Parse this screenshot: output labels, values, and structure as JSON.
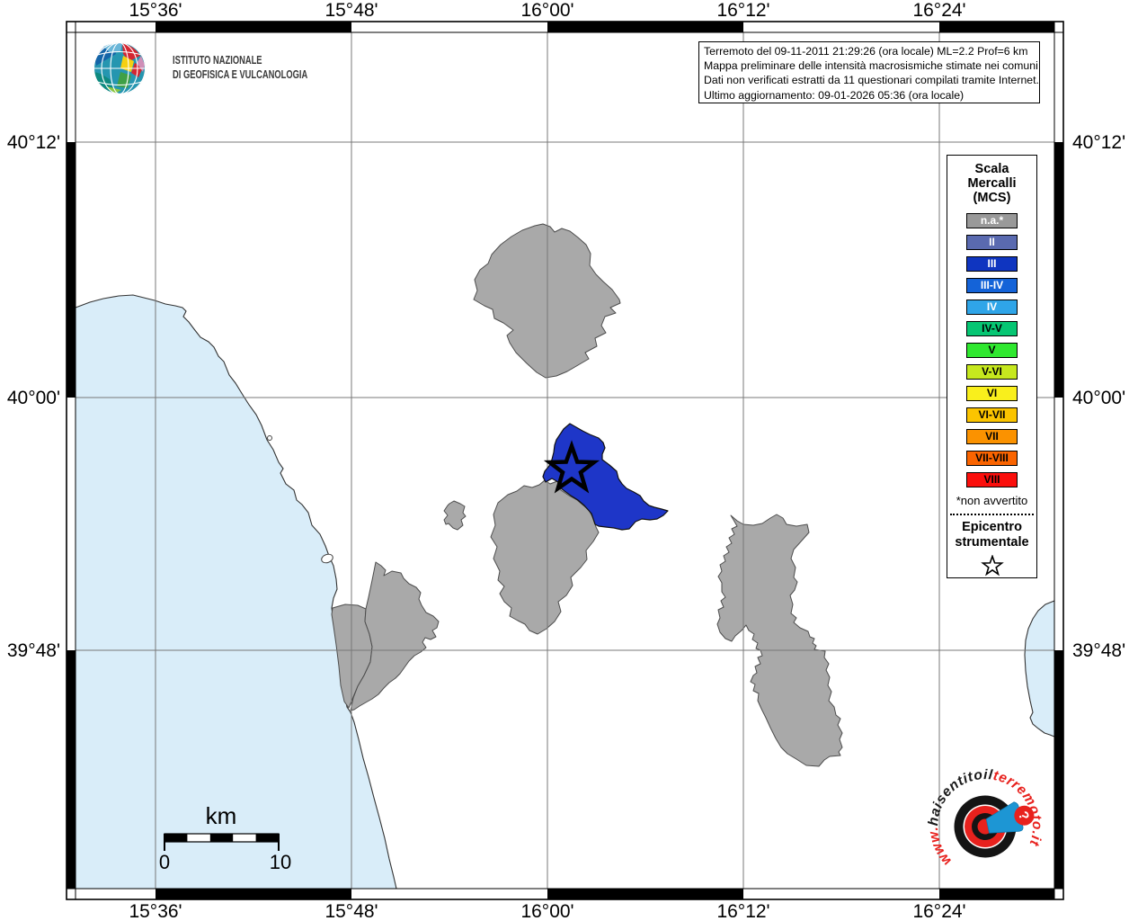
{
  "colors": {
    "sea": "#d9edf9",
    "land": "#ffffff",
    "municipality_na": "#a9a9a9",
    "municipality_border": "#4d4d4d",
    "felt_iii": "#1e36c8",
    "grid": "#787878",
    "frame": "#000000",
    "logo_red": "#e8211d",
    "logo_blue": "#1d96d4"
  },
  "info_box": {
    "line1": "Terremoto del 09-11-2011 21:29:26 (ora locale) ML=2.2 Prof=6 km",
    "line2": "Mappa preliminare delle intensità macrosismiche stimate nei comuni",
    "line3": "Dati non verificati estratti da 11 questionari compilati tramite Internet.",
    "line4": "Ultimo aggiornamento: 09-01-2026 05:36 (ora locale)"
  },
  "ingv_logo": {
    "line1": "ISTITUTO NAZIONALE",
    "line2": "DI GEOFISICA E VULCANOLOGIA"
  },
  "legend": {
    "title": "Scala\nMercalli\n(MCS)",
    "items": [
      {
        "label": "n.a.*",
        "color": "#999999",
        "text_color": "#ffffff"
      },
      {
        "label": "II",
        "color": "#5a6ab0",
        "text_color": "#ffffff"
      },
      {
        "label": "III",
        "color": "#0f35c0",
        "text_color": "#ffffff"
      },
      {
        "label": "III-IV",
        "color": "#1463d8",
        "text_color": "#ffffff"
      },
      {
        "label": "IV",
        "color": "#2fa5e8",
        "text_color": "#ffffff"
      },
      {
        "label": "IV-V",
        "color": "#06c673",
        "text_color": "#000000"
      },
      {
        "label": "V",
        "color": "#2fe82f",
        "text_color": "#000000"
      },
      {
        "label": "V-VI",
        "color": "#c6e81e",
        "text_color": "#000000"
      },
      {
        "label": "VI",
        "color": "#f9ef1c",
        "text_color": "#000000"
      },
      {
        "label": "VI-VII",
        "color": "#fbc400",
        "text_color": "#000000"
      },
      {
        "label": "VII",
        "color": "#fb9200",
        "text_color": "#000000"
      },
      {
        "label": "VII-VIII",
        "color": "#fa6400",
        "text_color": "#000000"
      },
      {
        "label": "VIII",
        "color": "#fb0f0c",
        "text_color": "#000000"
      }
    ],
    "footnote": "*non avvertito",
    "epicenter_label": "Epicentro\nstrumentale"
  },
  "axes": {
    "lon_labels": [
      "15°36'",
      "15°48'",
      "16°00'",
      "16°12'",
      "16°24'"
    ],
    "lat_labels": [
      "40°12'",
      "40°00'",
      "39°48'"
    ]
  },
  "scale_bar": {
    "unit": "km",
    "tick_start": "0",
    "tick_end": "10"
  },
  "site_logo": {
    "url_prefix": "www.",
    "url_mid": "haisentitoil",
    "url_suffix": "terremoto.it",
    "question_mark": "?"
  }
}
